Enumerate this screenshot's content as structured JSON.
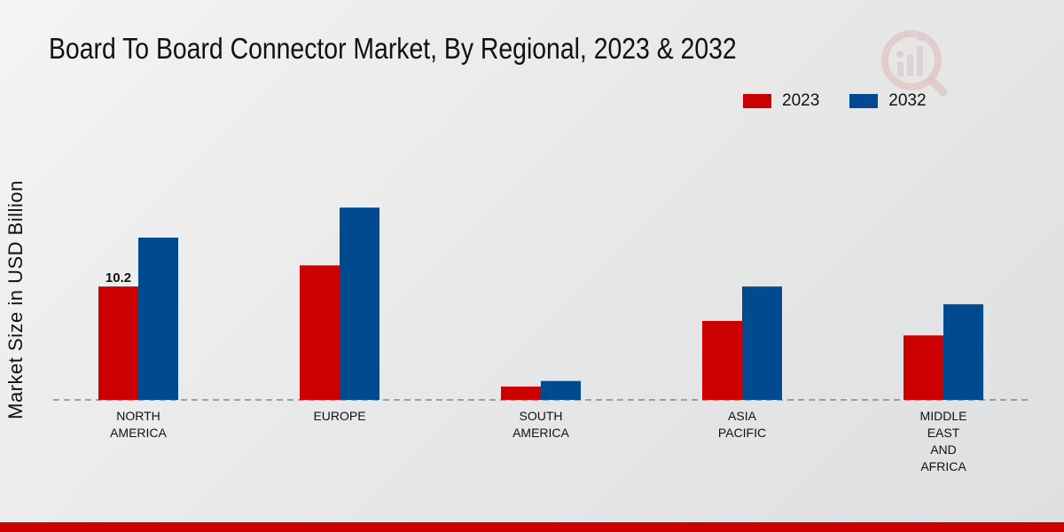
{
  "chart_data": {
    "type": "bar",
    "title": "Board To Board Connector Market, By Regional, 2023 & 2032",
    "ylabel": "Market Size in USD Billion",
    "xlabel": "",
    "categories": [
      "NORTH\nAMERICA",
      "EUROPE",
      "SOUTH\nAMERICA",
      "ASIA\nPACIFIC",
      "MIDDLE\nEAST\nAND\nAFRICA"
    ],
    "series": [
      {
        "name": "2023",
        "color": "#cc0000",
        "values": [
          10.2,
          12.1,
          1.2,
          7.1,
          5.8
        ]
      },
      {
        "name": "2032",
        "color": "#004a8f",
        "values": [
          14.6,
          17.3,
          1.7,
          10.2,
          8.6
        ]
      }
    ],
    "data_labels": [
      {
        "series": 0,
        "index": 0,
        "text": "10.2"
      }
    ],
    "ylim": [
      0,
      28
    ],
    "legend_position": "top-right",
    "grid": false
  },
  "footer": {
    "accent_color": "#cc0000"
  }
}
